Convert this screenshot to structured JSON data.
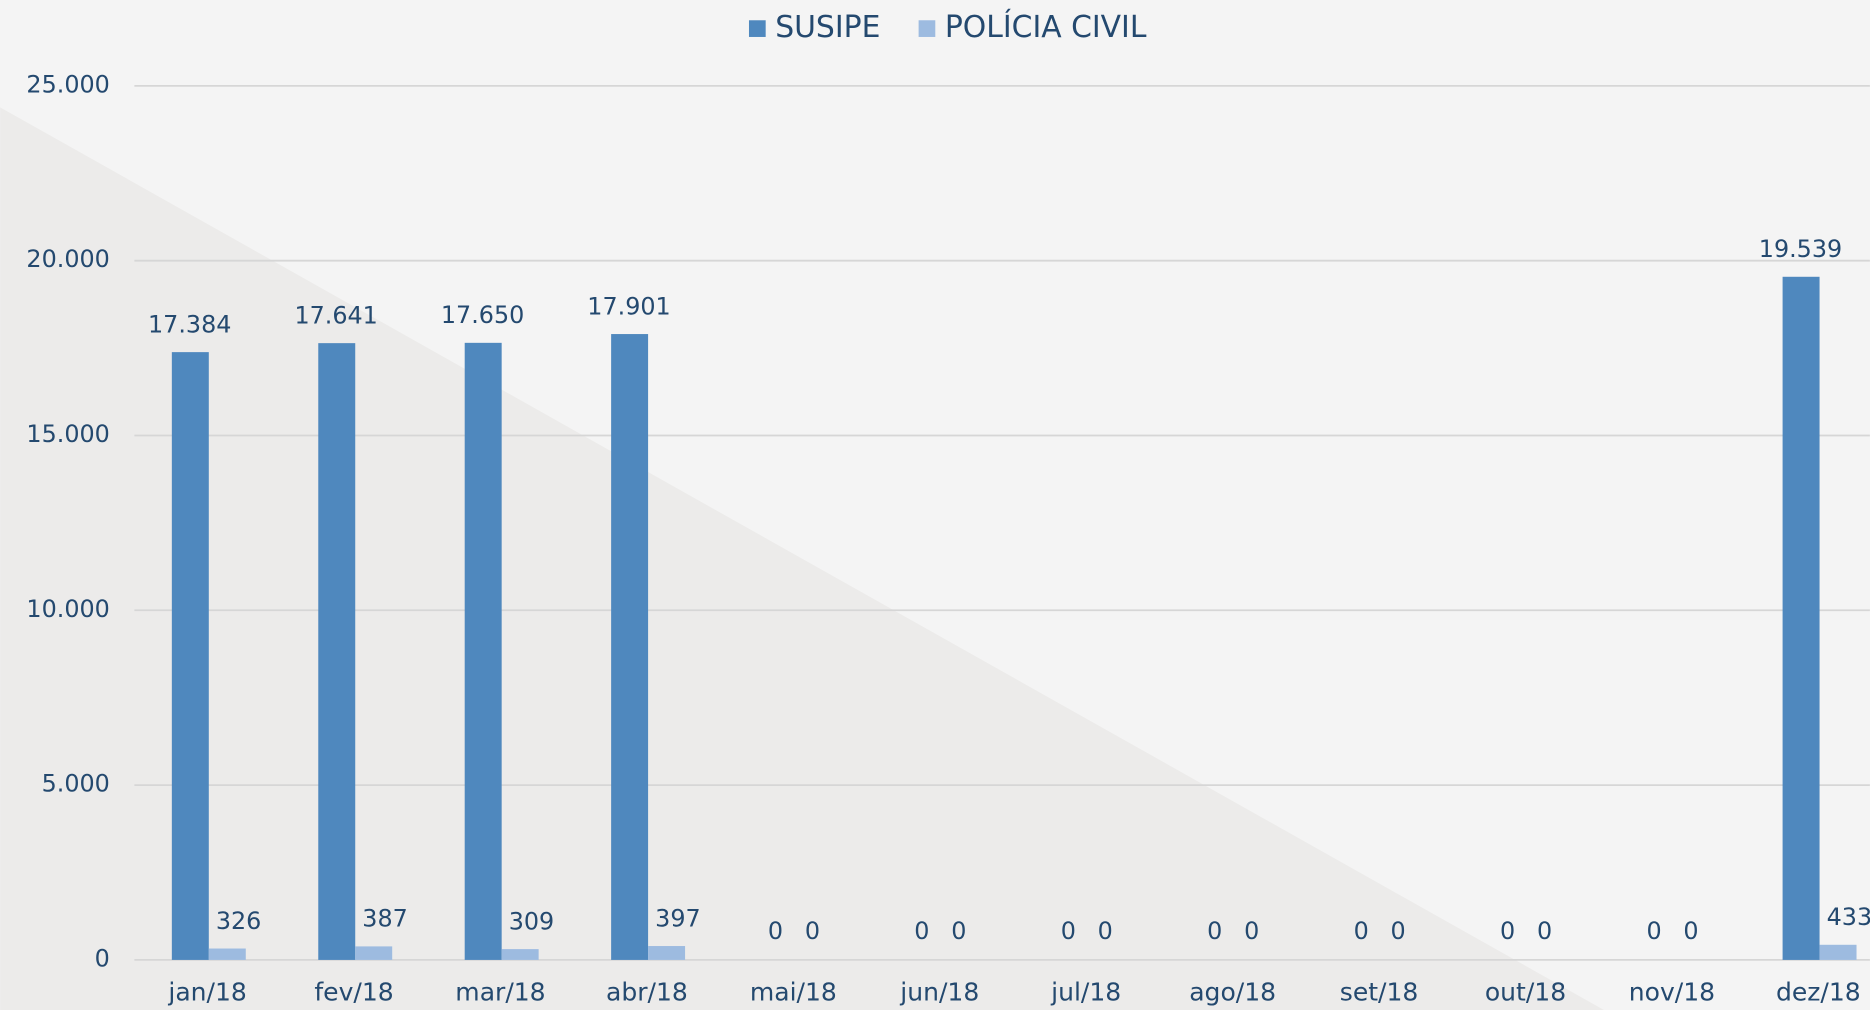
{
  "chart_data": {
    "type": "bar",
    "categories": [
      "jan/18",
      "fev/18",
      "mar/18",
      "abr/18",
      "mai/18",
      "jun/18",
      "jul/18",
      "ago/18",
      "set/18",
      "out/18",
      "nov/18",
      "dez/18"
    ],
    "series": [
      {
        "name": "SUSIPE",
        "color": "#4f88be",
        "values": [
          17384,
          17641,
          17650,
          17901,
          0,
          0,
          0,
          0,
          0,
          0,
          0,
          19539
        ],
        "value_labels": [
          "17.384",
          "17.641",
          "17.650",
          "17.901",
          "0",
          "0",
          "0",
          "0",
          "0",
          "0",
          "0",
          "19.539"
        ]
      },
      {
        "name": "POLÍCIA CIVIL",
        "color": "#9dbbe0",
        "values": [
          326,
          387,
          309,
          397,
          0,
          0,
          0,
          0,
          0,
          0,
          0,
          433
        ],
        "value_labels": [
          "326",
          "387",
          "309",
          "397",
          "0",
          "0",
          "0",
          "0",
          "0",
          "0",
          "0",
          "433"
        ]
      }
    ],
    "ylim": [
      0,
      25000
    ],
    "yticks": [
      0,
      {
        "value": 5000,
        "label": "5.000"
      },
      {
        "value": 10000,
        "label": "10.000"
      },
      {
        "value": 15000,
        "label": "15.000"
      },
      {
        "value": 20000,
        "label": "20.000"
      },
      {
        "value": 25000,
        "label": "25.000"
      }
    ],
    "grid": true,
    "legend": "top"
  }
}
